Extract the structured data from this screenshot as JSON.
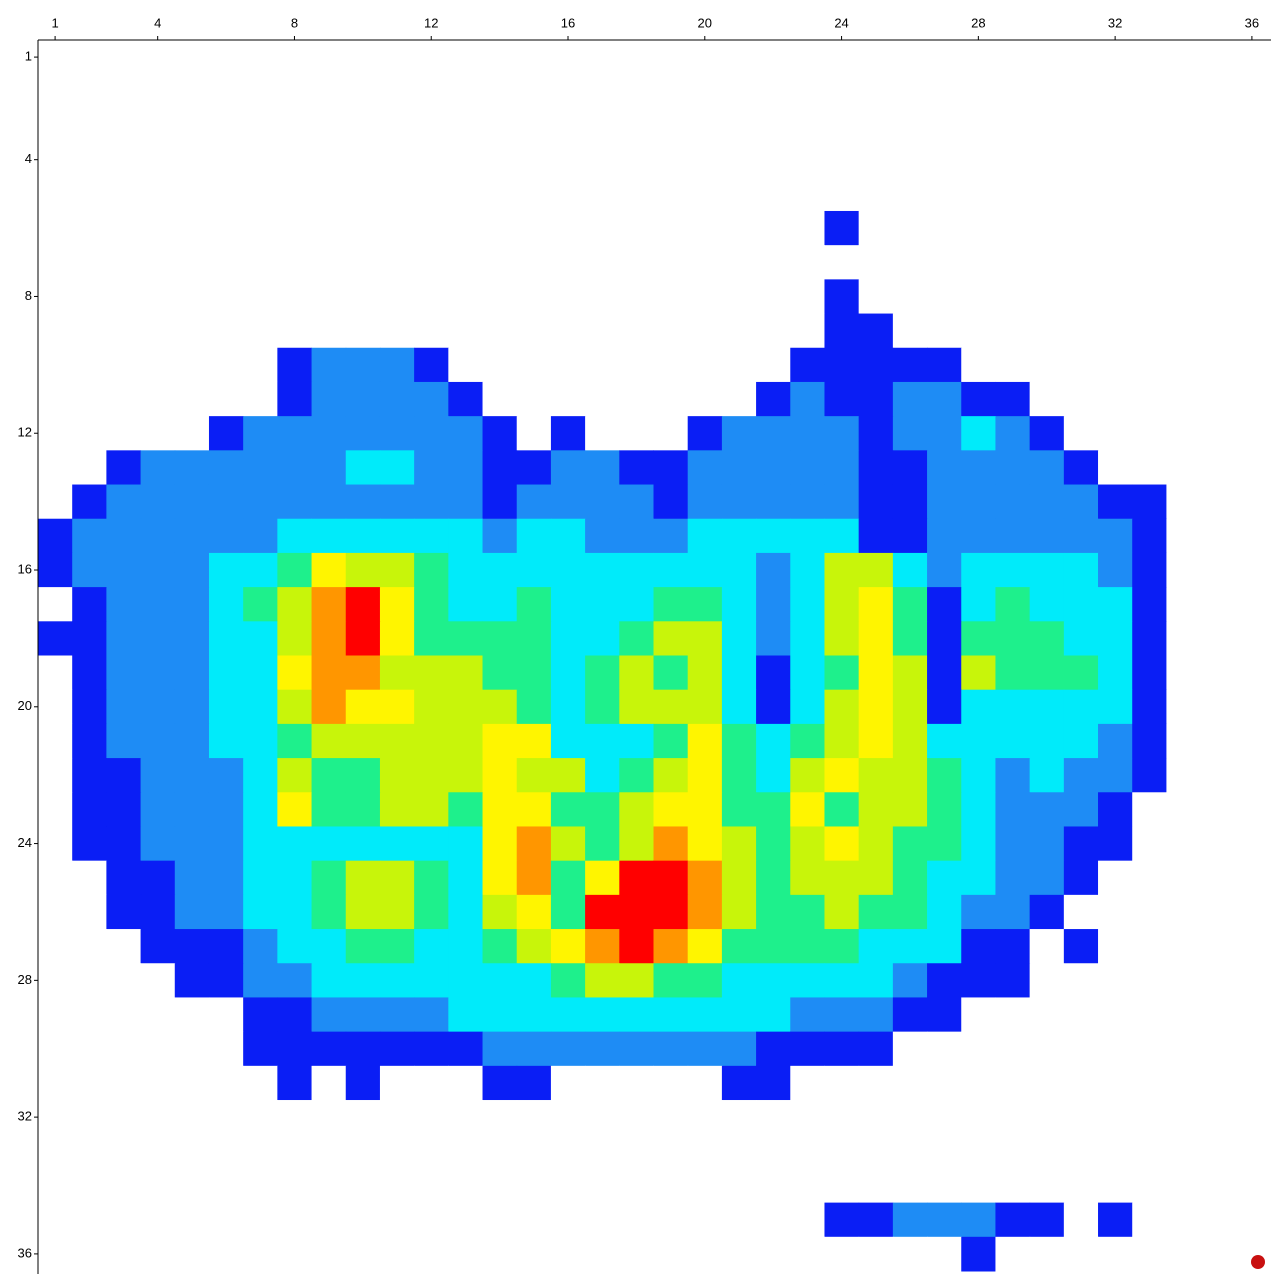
{
  "chart_data": {
    "type": "heatmap",
    "xlim": [
      0.5,
      36.5
    ],
    "ylim": [
      0.5,
      36.5
    ],
    "xticks": [
      1,
      4,
      8,
      12,
      16,
      20,
      24,
      28,
      32,
      36
    ],
    "yticks": [
      1,
      4,
      8,
      12,
      16,
      20,
      24,
      28,
      32,
      36
    ],
    "colors": [
      "#ffffff",
      "#0a1ef5",
      "#1e8cf5",
      "#00ebfa",
      "#1ef08c",
      "#c8f50a",
      "#fff500",
      "#ff9600",
      "#ff0000"
    ],
    "values": [
      [
        0,
        0,
        0,
        0,
        0,
        0,
        0,
        0,
        0,
        0,
        0,
        0,
        0,
        0,
        0,
        0,
        0,
        0,
        0,
        0,
        0,
        0,
        0,
        0,
        0,
        0,
        0,
        0,
        0,
        0,
        0,
        0,
        0,
        0,
        0,
        0
      ],
      [
        0,
        0,
        0,
        0,
        0,
        0,
        0,
        0,
        0,
        0,
        0,
        0,
        0,
        0,
        0,
        0,
        0,
        0,
        0,
        0,
        0,
        0,
        0,
        0,
        0,
        0,
        0,
        0,
        0,
        0,
        0,
        0,
        0,
        0,
        0,
        0
      ],
      [
        0,
        0,
        0,
        0,
        0,
        0,
        0,
        0,
        0,
        0,
        0,
        0,
        0,
        0,
        0,
        0,
        0,
        0,
        0,
        0,
        0,
        0,
        0,
        0,
        0,
        0,
        0,
        0,
        0,
        0,
        0,
        0,
        0,
        0,
        0,
        0
      ],
      [
        0,
        0,
        0,
        0,
        0,
        0,
        0,
        0,
        0,
        0,
        0,
        0,
        0,
        0,
        0,
        0,
        0,
        0,
        0,
        0,
        0,
        0,
        0,
        0,
        0,
        0,
        0,
        0,
        0,
        0,
        0,
        0,
        0,
        0,
        0,
        0
      ],
      [
        0,
        0,
        0,
        0,
        0,
        0,
        0,
        0,
        0,
        0,
        0,
        0,
        0,
        0,
        0,
        0,
        0,
        0,
        0,
        0,
        0,
        0,
        0,
        0,
        0,
        0,
        0,
        0,
        0,
        0,
        0,
        0,
        0,
        0,
        0,
        0
      ],
      [
        0,
        0,
        0,
        0,
        0,
        0,
        0,
        0,
        0,
        0,
        0,
        0,
        0,
        0,
        0,
        0,
        0,
        0,
        0,
        0,
        0,
        0,
        0,
        1,
        0,
        0,
        0,
        0,
        0,
        0,
        0,
        0,
        0,
        0,
        0,
        0
      ],
      [
        0,
        0,
        0,
        0,
        0,
        0,
        0,
        0,
        0,
        0,
        0,
        0,
        0,
        0,
        0,
        0,
        0,
        0,
        0,
        0,
        0,
        0,
        0,
        0,
        0,
        0,
        0,
        0,
        0,
        0,
        0,
        0,
        0,
        0,
        0,
        0
      ],
      [
        0,
        0,
        0,
        0,
        0,
        0,
        0,
        0,
        0,
        0,
        0,
        0,
        0,
        0,
        0,
        0,
        0,
        0,
        0,
        0,
        0,
        0,
        0,
        1,
        0,
        0,
        0,
        0,
        0,
        0,
        0,
        0,
        0,
        0,
        0,
        0
      ],
      [
        0,
        0,
        0,
        0,
        0,
        0,
        0,
        0,
        0,
        0,
        0,
        0,
        0,
        0,
        0,
        0,
        0,
        0,
        0,
        0,
        0,
        0,
        0,
        1,
        1,
        0,
        0,
        0,
        0,
        0,
        0,
        0,
        0,
        0,
        0,
        0
      ],
      [
        0,
        0,
        0,
        0,
        0,
        0,
        0,
        1,
        2,
        2,
        2,
        1,
        0,
        0,
        0,
        0,
        0,
        0,
        0,
        0,
        0,
        0,
        1,
        1,
        1,
        1,
        1,
        0,
        0,
        0,
        0,
        0,
        0,
        0,
        0,
        0
      ],
      [
        0,
        0,
        0,
        0,
        0,
        0,
        0,
        1,
        2,
        2,
        2,
        2,
        1,
        0,
        0,
        0,
        0,
        0,
        0,
        0,
        0,
        1,
        2,
        1,
        1,
        2,
        2,
        1,
        1,
        0,
        0,
        0,
        0,
        0,
        0,
        0
      ],
      [
        0,
        0,
        0,
        0,
        0,
        1,
        2,
        2,
        2,
        2,
        2,
        2,
        2,
        1,
        0,
        1,
        0,
        0,
        0,
        1,
        2,
        2,
        2,
        2,
        1,
        2,
        2,
        3,
        2,
        1,
        0,
        0,
        0,
        0,
        0,
        0
      ],
      [
        0,
        0,
        1,
        2,
        2,
        2,
        2,
        2,
        2,
        3,
        3,
        2,
        2,
        1,
        1,
        2,
        2,
        1,
        1,
        2,
        2,
        2,
        2,
        2,
        1,
        1,
        2,
        2,
        2,
        2,
        1,
        0,
        0,
        0,
        0,
        0
      ],
      [
        0,
        1,
        2,
        2,
        2,
        2,
        2,
        2,
        2,
        2,
        2,
        2,
        2,
        1,
        2,
        2,
        2,
        2,
        1,
        2,
        2,
        2,
        2,
        2,
        1,
        1,
        2,
        2,
        2,
        2,
        2,
        1,
        1,
        0,
        0,
        0
      ],
      [
        1,
        2,
        2,
        2,
        2,
        2,
        2,
        3,
        3,
        3,
        3,
        3,
        3,
        2,
        3,
        3,
        2,
        2,
        2,
        3,
        3,
        3,
        3,
        3,
        1,
        1,
        2,
        2,
        2,
        2,
        2,
        2,
        1,
        0,
        0,
        0
      ],
      [
        1,
        2,
        2,
        2,
        2,
        3,
        3,
        4,
        6,
        5,
        5,
        4,
        3,
        3,
        3,
        3,
        3,
        3,
        3,
        3,
        3,
        2,
        3,
        5,
        5,
        3,
        2,
        3,
        3,
        3,
        3,
        2,
        1,
        0,
        0,
        0
      ],
      [
        0,
        1,
        2,
        2,
        2,
        3,
        4,
        5,
        7,
        8,
        6,
        4,
        3,
        3,
        4,
        3,
        3,
        3,
        4,
        4,
        3,
        2,
        3,
        5,
        6,
        4,
        1,
        3,
        4,
        3,
        3,
        3,
        1,
        0,
        0,
        0
      ],
      [
        1,
        1,
        2,
        2,
        2,
        3,
        3,
        5,
        7,
        8,
        6,
        4,
        4,
        4,
        4,
        3,
        3,
        4,
        5,
        5,
        3,
        2,
        3,
        5,
        6,
        4,
        1,
        4,
        4,
        4,
        3,
        3,
        1,
        0,
        0,
        0
      ],
      [
        0,
        1,
        2,
        2,
        2,
        3,
        3,
        6,
        7,
        7,
        5,
        5,
        5,
        4,
        4,
        3,
        4,
        5,
        4,
        5,
        3,
        1,
        3,
        4,
        6,
        5,
        1,
        5,
        4,
        4,
        4,
        3,
        1,
        0,
        0,
        0
      ],
      [
        0,
        1,
        2,
        2,
        2,
        3,
        3,
        5,
        7,
        6,
        6,
        5,
        5,
        5,
        4,
        3,
        4,
        5,
        5,
        5,
        3,
        1,
        3,
        5,
        6,
        5,
        1,
        3,
        3,
        3,
        3,
        3,
        1,
        0,
        0,
        0
      ],
      [
        0,
        1,
        2,
        2,
        2,
        3,
        3,
        4,
        5,
        5,
        5,
        5,
        5,
        6,
        6,
        3,
        3,
        3,
        4,
        6,
        4,
        3,
        4,
        5,
        6,
        5,
        3,
        3,
        3,
        3,
        3,
        2,
        1,
        0,
        0,
        0
      ],
      [
        0,
        1,
        1,
        2,
        2,
        2,
        3,
        5,
        4,
        4,
        5,
        5,
        5,
        6,
        5,
        5,
        3,
        4,
        5,
        6,
        4,
        3,
        5,
        6,
        5,
        5,
        4,
        3,
        2,
        3,
        2,
        2,
        1,
        0,
        0,
        0
      ],
      [
        0,
        1,
        1,
        2,
        2,
        2,
        3,
        6,
        4,
        4,
        5,
        5,
        4,
        6,
        6,
        4,
        4,
        5,
        6,
        6,
        4,
        4,
        6,
        4,
        5,
        5,
        4,
        3,
        2,
        2,
        2,
        1,
        0,
        0,
        0,
        0
      ],
      [
        0,
        1,
        1,
        2,
        2,
        2,
        3,
        3,
        3,
        3,
        3,
        3,
        3,
        6,
        7,
        5,
        4,
        5,
        7,
        6,
        5,
        4,
        5,
        6,
        5,
        4,
        4,
        3,
        2,
        2,
        1,
        1,
        0,
        0,
        0,
        0
      ],
      [
        0,
        0,
        1,
        1,
        2,
        2,
        3,
        3,
        4,
        5,
        5,
        4,
        3,
        6,
        7,
        4,
        6,
        8,
        8,
        7,
        5,
        4,
        5,
        5,
        5,
        4,
        3,
        3,
        2,
        2,
        1,
        0,
        0,
        0,
        0,
        0
      ],
      [
        0,
        0,
        1,
        1,
        2,
        2,
        3,
        3,
        4,
        5,
        5,
        4,
        3,
        5,
        6,
        4,
        8,
        8,
        8,
        7,
        5,
        4,
        4,
        5,
        4,
        4,
        3,
        2,
        2,
        1,
        0,
        0,
        0,
        0,
        0,
        0
      ],
      [
        0,
        0,
        0,
        1,
        1,
        1,
        2,
        3,
        3,
        4,
        4,
        3,
        3,
        4,
        5,
        6,
        7,
        8,
        7,
        6,
        4,
        4,
        4,
        4,
        3,
        3,
        3,
        1,
        1,
        0,
        1,
        0,
        0,
        0,
        0,
        0
      ],
      [
        0,
        0,
        0,
        0,
        1,
        1,
        2,
        2,
        3,
        3,
        3,
        3,
        3,
        3,
        3,
        4,
        5,
        5,
        4,
        4,
        3,
        3,
        3,
        3,
        3,
        2,
        1,
        1,
        1,
        0,
        0,
        0,
        0,
        0,
        0,
        0
      ],
      [
        0,
        0,
        0,
        0,
        0,
        0,
        1,
        1,
        2,
        2,
        2,
        2,
        3,
        3,
        3,
        3,
        3,
        3,
        3,
        3,
        3,
        3,
        2,
        2,
        2,
        1,
        1,
        0,
        0,
        0,
        0,
        0,
        0,
        0,
        0,
        0
      ],
      [
        0,
        0,
        0,
        0,
        0,
        0,
        1,
        1,
        1,
        1,
        1,
        1,
        1,
        2,
        2,
        2,
        2,
        2,
        2,
        2,
        2,
        1,
        1,
        1,
        1,
        0,
        0,
        0,
        0,
        0,
        0,
        0,
        0,
        0,
        0,
        0
      ],
      [
        0,
        0,
        0,
        0,
        0,
        0,
        0,
        1,
        0,
        1,
        0,
        0,
        0,
        1,
        1,
        0,
        0,
        0,
        0,
        0,
        1,
        1,
        0,
        0,
        0,
        0,
        0,
        0,
        0,
        0,
        0,
        0,
        0,
        0,
        0,
        0
      ],
      [
        0,
        0,
        0,
        0,
        0,
        0,
        0,
        0,
        0,
        0,
        0,
        0,
        0,
        0,
        0,
        0,
        0,
        0,
        0,
        0,
        0,
        0,
        0,
        0,
        0,
        0,
        0,
        0,
        0,
        0,
        0,
        0,
        0,
        0,
        0,
        0
      ],
      [
        0,
        0,
        0,
        0,
        0,
        0,
        0,
        0,
        0,
        0,
        0,
        0,
        0,
        0,
        0,
        0,
        0,
        0,
        0,
        0,
        0,
        0,
        0,
        0,
        0,
        0,
        0,
        0,
        0,
        0,
        0,
        0,
        0,
        0,
        0,
        0
      ],
      [
        0,
        0,
        0,
        0,
        0,
        0,
        0,
        0,
        0,
        0,
        0,
        0,
        0,
        0,
        0,
        0,
        0,
        0,
        0,
        0,
        0,
        0,
        0,
        0,
        0,
        0,
        0,
        0,
        0,
        0,
        0,
        0,
        0,
        0,
        0,
        0
      ],
      [
        0,
        0,
        0,
        0,
        0,
        0,
        0,
        0,
        0,
        0,
        0,
        0,
        0,
        0,
        0,
        0,
        0,
        0,
        0,
        0,
        0,
        0,
        0,
        1,
        1,
        2,
        2,
        2,
        1,
        1,
        0,
        1,
        0,
        0,
        0,
        0
      ],
      [
        0,
        0,
        0,
        0,
        0,
        0,
        0,
        0,
        0,
        0,
        0,
        0,
        0,
        0,
        0,
        0,
        0,
        0,
        0,
        0,
        0,
        0,
        0,
        0,
        0,
        0,
        0,
        1,
        0,
        0,
        0,
        0,
        0,
        0,
        0,
        0
      ]
    ]
  }
}
